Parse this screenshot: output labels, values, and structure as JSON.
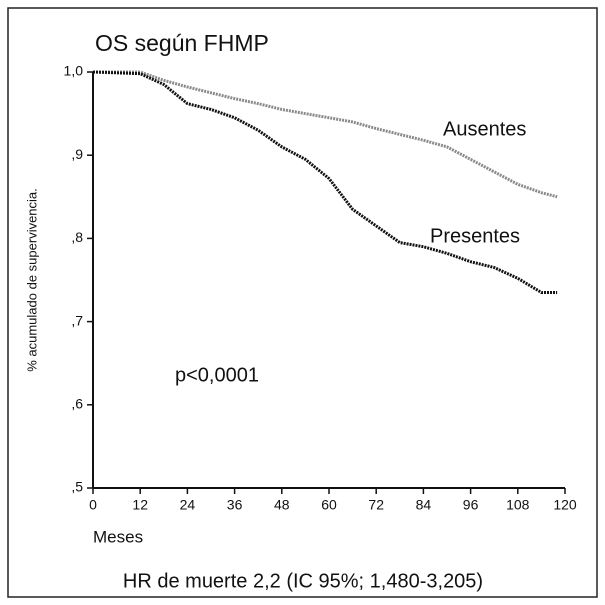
{
  "chart_data": {
    "type": "line",
    "title": "OS según FHMP",
    "xlabel": "Meses",
    "ylabel": "% acumulado de supervivencia.",
    "x": [
      0,
      12,
      18,
      24,
      30,
      36,
      42,
      48,
      54,
      60,
      66,
      72,
      78,
      84,
      90,
      96,
      102,
      108,
      114,
      118
    ],
    "series": [
      {
        "name": "Ausentes",
        "color": "#8a8a8a",
        "values": [
          1.0,
          1.0,
          0.99,
          0.982,
          0.975,
          0.968,
          0.962,
          0.955,
          0.95,
          0.945,
          0.94,
          0.932,
          0.925,
          0.918,
          0.91,
          0.895,
          0.88,
          0.865,
          0.855,
          0.85
        ]
      },
      {
        "name": "Presentes",
        "color": "#111111",
        "values": [
          1.0,
          0.998,
          0.985,
          0.962,
          0.955,
          0.945,
          0.93,
          0.91,
          0.895,
          0.872,
          0.835,
          0.815,
          0.795,
          0.79,
          0.782,
          0.772,
          0.765,
          0.752,
          0.735,
          0.735
        ]
      }
    ],
    "xlim": [
      0,
      120
    ],
    "xticks": [
      0,
      12,
      24,
      36,
      48,
      60,
      72,
      84,
      96,
      108,
      120
    ],
    "ylim": [
      0.5,
      1.0
    ],
    "yticks": [
      {
        "value": 0.5,
        "label": ",5"
      },
      {
        "value": 0.6,
        "label": ",6"
      },
      {
        "value": 0.7,
        "label": ",7"
      },
      {
        "value": 0.8,
        "label": ",8"
      },
      {
        "value": 0.9,
        "label": ",9"
      },
      {
        "value": 1.0,
        "label": "1,0"
      }
    ],
    "annotations": {
      "p_value": "p<0,0001",
      "hr": "HR  de muerte 2,2 (IC 95%; 1,480-3,205)"
    }
  }
}
